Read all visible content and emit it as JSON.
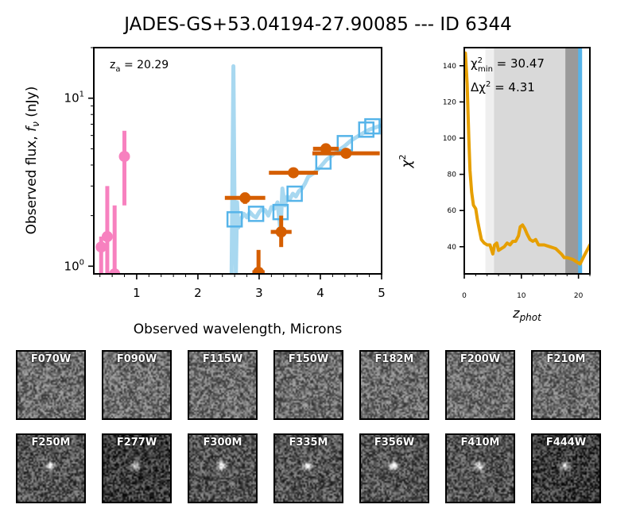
{
  "title": "JADES-GS+53.04194-27.90085 --- ID 6344",
  "chart_data": [
    {
      "type": "scatter",
      "name": "sed",
      "annotation": "z",
      "annotation_sub": "a",
      "annotation_value": " = 20.29",
      "xlabel": "Observed wavelength, Microns",
      "ylabel_text": "Observed flux, ",
      "ylabel_sym": "f",
      "ylabel_sub": "ν",
      "ylabel_unit": " (nJy)",
      "xlim": [
        0.3,
        5.0
      ],
      "ylim": [
        0.9,
        20.0
      ],
      "yscale": "log",
      "xticks": [
        1,
        2,
        3,
        4,
        5
      ],
      "yticks": [
        {
          "value": 1,
          "base": "10",
          "exp": "0"
        },
        {
          "value": 10,
          "base": "10",
          "exp": "1"
        }
      ],
      "model_spectrum": {
        "color": "#a8d8f0",
        "x": [
          2.55,
          2.58,
          2.6,
          2.62,
          2.64,
          2.66,
          2.7,
          2.75,
          2.8,
          2.85,
          2.9,
          2.95,
          3.0,
          3.05,
          3.1,
          3.15,
          3.2,
          3.25,
          3.3,
          3.35,
          3.38,
          3.42,
          3.46,
          3.5,
          3.55,
          3.6,
          3.65,
          3.7,
          3.75,
          3.8,
          3.9,
          4.0,
          4.1,
          4.2,
          4.3,
          4.4,
          4.5,
          4.6,
          4.7,
          4.8,
          4.9,
          5.0
        ],
        "y": [
          0.9,
          15.5,
          2.0,
          0.9,
          2.4,
          1.7,
          1.9,
          2.05,
          1.95,
          2.1,
          2.0,
          1.95,
          2.1,
          2.2,
          2.15,
          2.0,
          2.25,
          2.2,
          2.4,
          1.6,
          2.9,
          2.3,
          2.6,
          2.5,
          2.7,
          2.6,
          2.8,
          2.9,
          3.1,
          3.4,
          3.6,
          3.9,
          4.3,
          4.6,
          4.9,
          5.2,
          5.6,
          5.9,
          6.2,
          6.5,
          6.7,
          6.9
        ]
      },
      "model_photometry": {
        "color": "#56b4e9",
        "points": [
          {
            "x": 2.6,
            "y": 1.9
          },
          {
            "x": 2.95,
            "y": 2.05
          },
          {
            "x": 3.35,
            "y": 2.1
          },
          {
            "x": 3.58,
            "y": 2.7
          },
          {
            "x": 4.05,
            "y": 4.2
          },
          {
            "x": 4.4,
            "y": 5.4
          },
          {
            "x": 4.75,
            "y": 6.5
          },
          {
            "x": 4.85,
            "y": 6.8
          }
        ]
      },
      "nondetections": {
        "color": "#f781bf",
        "points": [
          {
            "x": 0.42,
            "y": 1.3,
            "ylo": 0.9,
            "yhi": 1.5
          },
          {
            "x": 0.52,
            "y": 1.5,
            "ylo": 0.9,
            "yhi": 3.0
          },
          {
            "x": 0.8,
            "y": 4.5,
            "ylo": 2.3,
            "yhi": 6.4
          },
          {
            "x": 0.64,
            "y": 0.9,
            "ylo": 0.9,
            "yhi": 2.3
          }
        ]
      },
      "detections": {
        "color": "#d55e00",
        "points": [
          {
            "x": 2.77,
            "y": 2.55,
            "xerr": 0.33,
            "ylo": 2.35,
            "yhi": 2.75
          },
          {
            "x": 2.99,
            "y": 0.92,
            "xerr": 0.1,
            "ylo": 0.9,
            "yhi": 1.25
          },
          {
            "x": 3.36,
            "y": 1.6,
            "xerr": 0.17,
            "ylo": 1.3,
            "yhi": 2.0
          },
          {
            "x": 3.56,
            "y": 3.6,
            "xerr": 0.4,
            "ylo": 3.4,
            "yhi": 3.85
          },
          {
            "x": 4.09,
            "y": 5.0,
            "xerr": 0.21,
            "ylo": 4.7,
            "yhi": 5.3
          },
          {
            "x": 4.42,
            "y": 4.7,
            "xerr": 0.55,
            "ylo": 4.4,
            "yhi": 5.0
          }
        ]
      }
    },
    {
      "type": "line",
      "name": "chi2",
      "color": "#e69f00",
      "xlabel_sym": "z",
      "xlabel_sub": "phot",
      "ylabel": "χ",
      "ylabel_sup": "2",
      "xlim": [
        0,
        22
      ],
      "ylim": [
        25,
        150
      ],
      "xticks": [
        0,
        10,
        20
      ],
      "yticks": [
        40,
        60,
        80,
        100,
        120,
        140
      ],
      "chi2_min_label": "χ",
      "chi2_min_sup": "2",
      "chi2_min_sub": "min",
      "chi2_min_value": " = 30.47",
      "delta_chi2_label": "Δχ",
      "delta_chi2_sup": "2",
      "delta_chi2_value": " = 4.31",
      "bands": [
        {
          "from": 3.7,
          "to": 5.2,
          "color": "#efefef"
        },
        {
          "from": 5.2,
          "to": 17.7,
          "color": "#d9d9d9"
        },
        {
          "from": 17.7,
          "to": 20.0,
          "color": "#9a9a9a"
        }
      ],
      "best_z": 20.29,
      "best_z_color": "#56b4e9",
      "x": [
        0.0,
        0.2,
        0.5,
        0.8,
        1.0,
        1.3,
        1.6,
        2.0,
        2.3,
        2.6,
        3.0,
        3.5,
        4.0,
        4.5,
        5.0,
        5.3,
        5.7,
        6.0,
        6.5,
        7.0,
        7.5,
        8.0,
        8.5,
        9.0,
        9.5,
        9.8,
        10.2,
        10.6,
        11.0,
        11.5,
        12.0,
        12.5,
        13.0,
        14.0,
        15.0,
        16.0,
        17.0,
        17.5,
        18.0,
        19.0,
        19.5,
        20.29,
        21.0,
        22.0
      ],
      "y": [
        143,
        147,
        130,
        100,
        82,
        70,
        63,
        61,
        55,
        50,
        44,
        42,
        41,
        41,
        36,
        41,
        42,
        38,
        39,
        40,
        42,
        41,
        43,
        43,
        46,
        51,
        52,
        50,
        47,
        44,
        43,
        44,
        41,
        41,
        40,
        39,
        36,
        34,
        34,
        33,
        32,
        30.47,
        35,
        41
      ]
    }
  ],
  "stamps": {
    "row1": [
      "F070W",
      "F090W",
      "F115W",
      "F150W",
      "F182M",
      "F200W",
      "F210M"
    ],
    "row2": [
      "F250M",
      "F277W",
      "F300M",
      "F335M",
      "F356W",
      "F410M",
      "F444W"
    ]
  }
}
